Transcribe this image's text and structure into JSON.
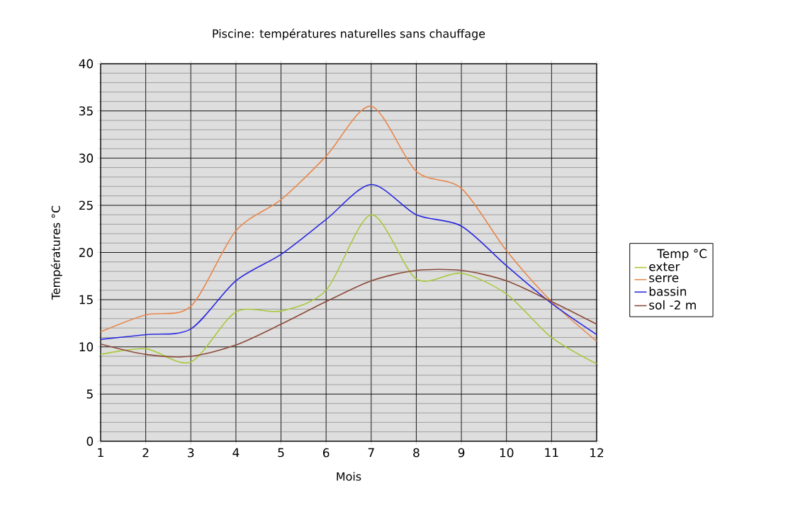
{
  "chart_data": {
    "type": "line",
    "title": "Piscine: températures naturelles sans chauffage",
    "xlabel": "Mois",
    "ylabel": "Températures °C",
    "legend_title": "Temp °C",
    "x": [
      1,
      2,
      3,
      4,
      5,
      6,
      7,
      8,
      9,
      10,
      11,
      12
    ],
    "series": [
      {
        "name": "exter",
        "color": "#a8c83c",
        "values": [
          9.2,
          9.8,
          8.4,
          13.7,
          13.8,
          16.0,
          24.0,
          17.2,
          17.8,
          15.6,
          11.0,
          8.2
        ]
      },
      {
        "name": "serre",
        "color": "#e8884c",
        "values": [
          11.6,
          13.4,
          14.3,
          22.3,
          25.6,
          30.2,
          35.5,
          28.6,
          26.8,
          20.2,
          14.8,
          10.6
        ]
      },
      {
        "name": "bassin",
        "color": "#2a2ae0",
        "values": [
          10.8,
          11.3,
          11.9,
          17.0,
          19.8,
          23.5,
          27.2,
          24.0,
          22.8,
          18.6,
          14.6,
          11.3
        ]
      },
      {
        "name": "sol -2 m",
        "color": "#8b4a3a",
        "values": [
          10.3,
          9.2,
          9.0,
          10.2,
          12.4,
          14.8,
          17.0,
          18.1,
          18.1,
          17.0,
          14.8,
          12.4
        ]
      }
    ],
    "xlim": [
      1,
      12
    ],
    "ylim": [
      0,
      40
    ],
    "xticks": [
      1,
      2,
      3,
      4,
      5,
      6,
      7,
      8,
      9,
      10,
      11,
      12
    ],
    "yticks": [
      0,
      5,
      10,
      15,
      20,
      25,
      30,
      35,
      40
    ],
    "grid": true,
    "legend": "right",
    "marker": "none",
    "line_style": "solid"
  }
}
